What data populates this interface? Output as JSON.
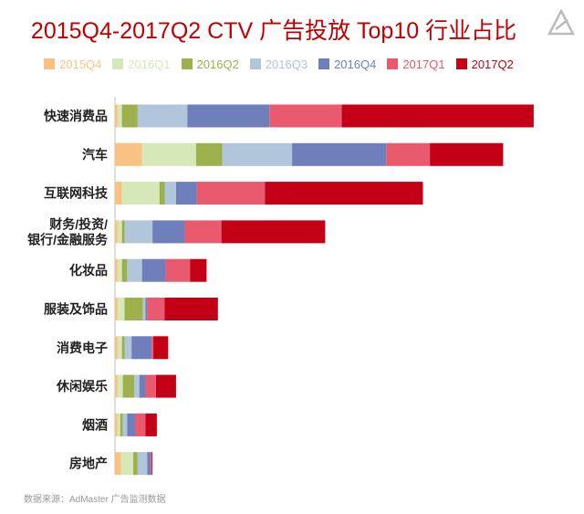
{
  "title": "2015Q4-2017Q2 CTV 广告投放 Top10 行业占比",
  "source": "数据来源：AdMaster 广告监测数据",
  "logo_icon": "triangle-logo-icon",
  "chart_data": {
    "type": "bar",
    "orientation": "horizontal",
    "stacked": true,
    "legend_position": "top",
    "grid": false,
    "categories": [
      [
        "快速消费品"
      ],
      [
        "汽车"
      ],
      [
        "互联网科技"
      ],
      [
        "财务/投资/",
        "银行/金融服务"
      ],
      [
        "化妆品"
      ],
      [
        "服装及饰品"
      ],
      [
        "消费电子"
      ],
      [
        "休闲娱乐"
      ],
      [
        "烟酒"
      ],
      [
        "房地产"
      ]
    ],
    "series": [
      {
        "name": "2015Q4",
        "color": "#f9c282",
        "values": [
          0.3,
          3.1,
          0.8,
          0.3,
          0.3,
          0.3,
          0.3,
          0.3,
          0.3,
          0.7
        ]
      },
      {
        "name": "2016Q1",
        "color": "#d6e8b8",
        "values": [
          0.5,
          6.2,
          4.3,
          0.5,
          0.5,
          0.8,
          0.5,
          0.6,
          0.3,
          1.4
        ]
      },
      {
        "name": "2016Q2",
        "color": "#9cb14c",
        "values": [
          1.8,
          3.0,
          0.6,
          0.3,
          0.6,
          2.1,
          0.3,
          1.3,
          0.3,
          0.5
        ]
      },
      {
        "name": "2016Q3",
        "color": "#b1c5db",
        "values": [
          5.7,
          8.0,
          1.3,
          3.2,
          1.7,
          0.3,
          0.8,
          0.6,
          0.5,
          1.1
        ]
      },
      {
        "name": "2016Q4",
        "color": "#6e7fbb",
        "values": [
          9.4,
          10.8,
          2.4,
          3.7,
          2.7,
          0.2,
          2.3,
          0.7,
          0.9,
          0.4
        ]
      },
      {
        "name": "2017Q1",
        "color": "#ea5a6e",
        "values": [
          8.3,
          5.0,
          7.8,
          4.2,
          2.8,
          2.0,
          0.2,
          1.2,
          1.2,
          0.1
        ]
      },
      {
        "name": "2017Q2",
        "color": "#c30016",
        "values": [
          22.0,
          8.4,
          18.1,
          11.9,
          1.9,
          6.1,
          1.7,
          2.3,
          1.3,
          0.1
        ]
      }
    ],
    "xlim": [
      0,
      50
    ]
  }
}
